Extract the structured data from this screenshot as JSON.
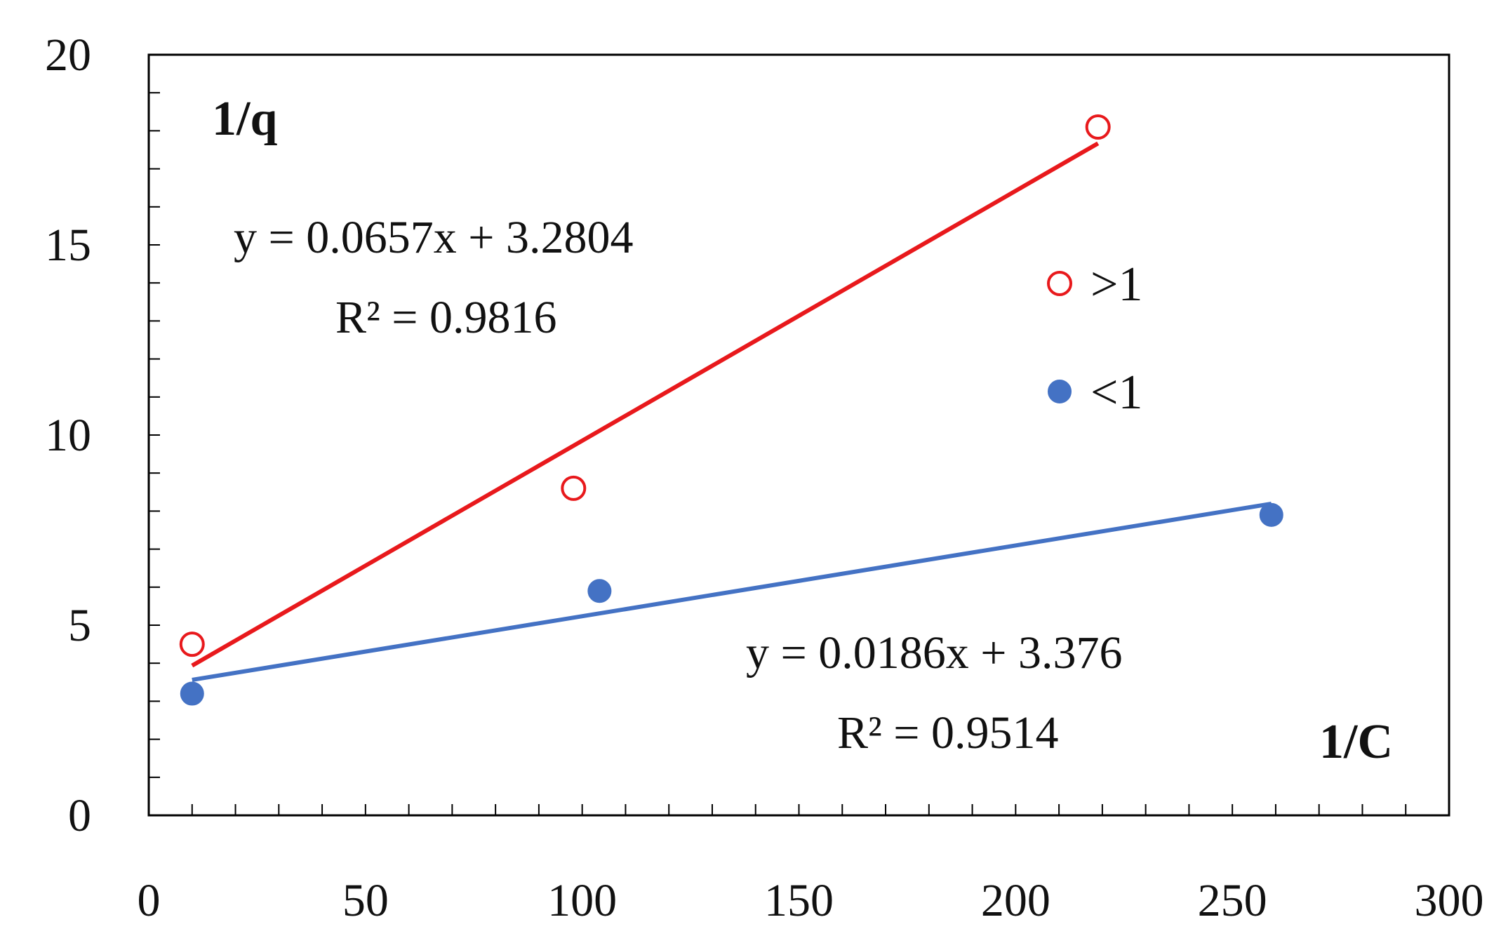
{
  "chart_data": {
    "type": "scatter",
    "xlabel": "1/C",
    "ylabel": "1/q",
    "xlim": [
      0,
      300
    ],
    "ylim": [
      0,
      20
    ],
    "x_ticks": [
      0,
      50,
      100,
      150,
      200,
      250,
      300
    ],
    "y_ticks": [
      0,
      5,
      10,
      15,
      20
    ],
    "x_minor_step": 10,
    "y_minor_step": 1,
    "grid": false,
    "legend_position": "right",
    "series": [
      {
        "name": ">1",
        "marker": "open-circle",
        "color": "#e8191c",
        "x": [
          10,
          98,
          219
        ],
        "y": [
          4.5,
          8.6,
          18.1
        ],
        "trendline": {
          "slope": 0.0657,
          "intercept": 3.2804,
          "x_range": [
            10,
            219
          ]
        },
        "equation": "y = 0.0657x + 3.2804",
        "r2_text": "R² = 0.9816"
      },
      {
        "name": "<1",
        "marker": "filled-circle",
        "color": "#4472c4",
        "x": [
          10,
          104,
          259
        ],
        "y": [
          3.2,
          5.9,
          7.9
        ],
        "trendline": {
          "slope": 0.0186,
          "intercept": 3.376,
          "x_range": [
            10,
            259
          ]
        },
        "equation": "y = 0.0186x + 3.376",
        "r2_text": "R² = 0.9514"
      }
    ]
  }
}
